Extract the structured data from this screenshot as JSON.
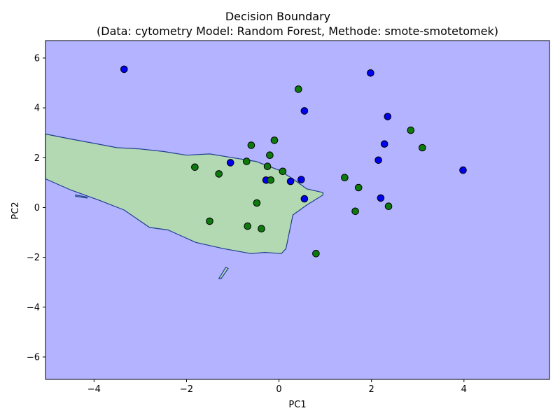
{
  "chart_data": {
    "type": "scatter",
    "title": "Decision Boundary",
    "subtitle": "(Data: cytometry Model: Random Forest, Methode: smote-smotetomek)",
    "xlabel": "PC1",
    "ylabel": "PC2",
    "xlim": [
      -5.05,
      5.85
    ],
    "ylim": [
      -6.9,
      6.7
    ],
    "xticks": [
      -4,
      -2,
      0,
      2,
      4
    ],
    "yticks": [
      -6,
      -4,
      -2,
      0,
      2,
      4,
      6
    ],
    "grid": false,
    "legend": "none",
    "colors": {
      "blue_region": "#b3b3ff",
      "green_region": "#b3d9b3",
      "boundary": "#1f3f8f",
      "blue_point": "#0000ee",
      "green_point": "#0e7a0e",
      "point_edge": "#000000"
    },
    "regions": [
      {
        "class": "green",
        "polygon": [
          [
            -5.05,
            2.95
          ],
          [
            -4.5,
            2.75
          ],
          [
            -3.5,
            2.4
          ],
          [
            -3.0,
            2.35
          ],
          [
            -2.5,
            2.25
          ],
          [
            -2.0,
            2.1
          ],
          [
            -1.5,
            2.15
          ],
          [
            -1.0,
            2.0
          ],
          [
            -0.5,
            1.85
          ],
          [
            0.0,
            1.5
          ],
          [
            0.3,
            1.15
          ],
          [
            0.6,
            0.75
          ],
          [
            0.95,
            0.6
          ],
          [
            0.95,
            0.5
          ],
          [
            0.6,
            0.1
          ],
          [
            0.3,
            -0.3
          ],
          [
            0.15,
            -1.65
          ],
          [
            0.05,
            -1.85
          ],
          [
            -0.3,
            -1.8
          ],
          [
            -0.6,
            -1.85
          ],
          [
            -1.2,
            -1.65
          ],
          [
            -1.8,
            -1.4
          ],
          [
            -2.4,
            -0.9
          ],
          [
            -2.8,
            -0.8
          ],
          [
            -3.35,
            -0.1
          ],
          [
            -3.9,
            0.3
          ],
          [
            -4.5,
            0.7
          ],
          [
            -5.05,
            1.15
          ]
        ]
      },
      {
        "class": "green",
        "polygon": [
          [
            -1.3,
            -2.85
          ],
          [
            -1.15,
            -2.4
          ],
          [
            -1.1,
            -2.45
          ],
          [
            -1.25,
            -2.85
          ]
        ]
      },
      {
        "class": "green",
        "polygon": [
          [
            -4.4,
            0.5
          ],
          [
            -4.15,
            0.42
          ],
          [
            -4.15,
            0.38
          ],
          [
            -4.4,
            0.45
          ]
        ]
      }
    ],
    "series": [
      {
        "class": "blue",
        "points": [
          [
            -3.35,
            5.55
          ],
          [
            1.98,
            5.4
          ],
          [
            0.55,
            3.88
          ],
          [
            2.35,
            3.65
          ],
          [
            2.28,
            2.55
          ],
          [
            2.15,
            1.9
          ],
          [
            3.98,
            1.5
          ],
          [
            -1.05,
            1.8
          ],
          [
            -0.28,
            1.1
          ],
          [
            0.48,
            1.12
          ],
          [
            0.25,
            1.05
          ],
          [
            0.55,
            0.35
          ],
          [
            2.2,
            0.38
          ]
        ]
      },
      {
        "class": "green",
        "points": [
          [
            0.42,
            4.75
          ],
          [
            2.85,
            3.1
          ],
          [
            3.1,
            2.4
          ],
          [
            -0.1,
            2.7
          ],
          [
            -0.6,
            2.5
          ],
          [
            -0.2,
            2.1
          ],
          [
            -0.7,
            1.85
          ],
          [
            -0.25,
            1.65
          ],
          [
            0.08,
            1.45
          ],
          [
            -1.82,
            1.62
          ],
          [
            -1.3,
            1.35
          ],
          [
            -0.18,
            1.1
          ],
          [
            1.42,
            1.2
          ],
          [
            1.72,
            0.8
          ],
          [
            -0.48,
            0.18
          ],
          [
            2.37,
            0.05
          ],
          [
            1.65,
            -0.15
          ],
          [
            -1.5,
            -0.55
          ],
          [
            -0.68,
            -0.75
          ],
          [
            -0.38,
            -0.85
          ],
          [
            0.8,
            -1.85
          ]
        ]
      }
    ]
  }
}
